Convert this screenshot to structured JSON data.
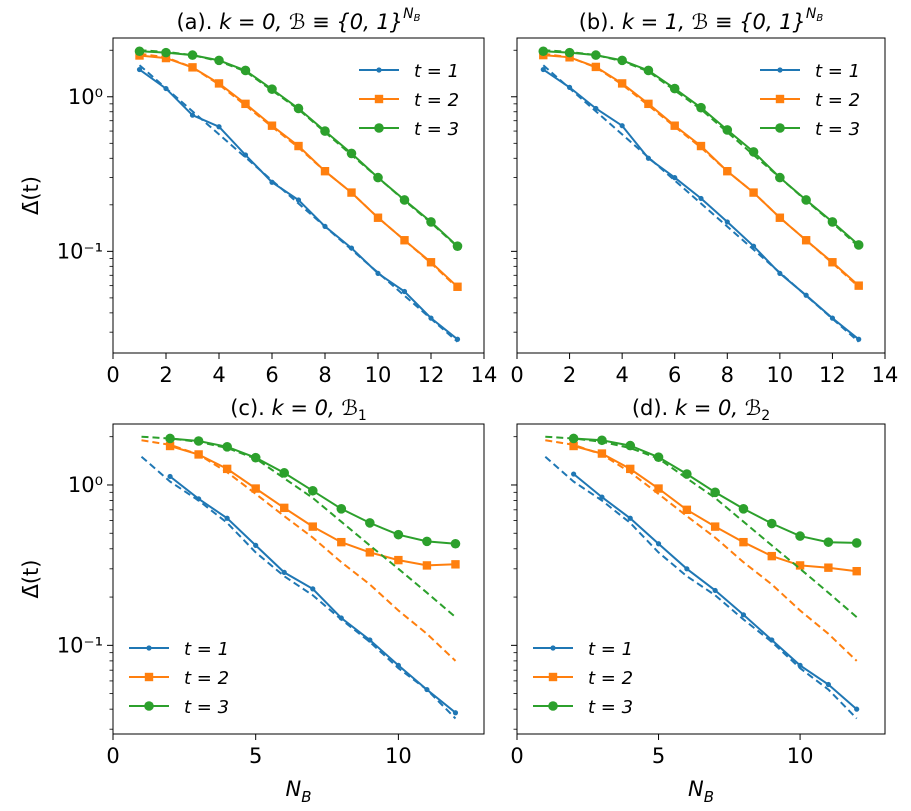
{
  "figure": {
    "series_colors": {
      "t1": "#1f77b4",
      "t2": "#ff7f0e",
      "t3": "#2ca02c"
    },
    "x_axis_label": "N_B",
    "y_axis_label": "Δ̄(t)",
    "y_tick_labels": [
      "10⁰",
      "10⁻¹"
    ]
  },
  "chart_data": [
    {
      "id": "a",
      "type": "line",
      "title_prefix": "(a). ",
      "title_k": "k = 0, ",
      "title_set": "ℬ ≡ {0, 1}",
      "title_sup": "N",
      "title_sub": "B",
      "xlabel": "",
      "ylabel": "Δ̄(t)",
      "yscale": "log",
      "xlim": [
        0,
        14
      ],
      "ylim": [
        0.022,
        2.4
      ],
      "x_ticks": [
        0,
        2,
        4,
        6,
        8,
        10,
        12,
        14
      ],
      "legend_position": "top-right",
      "series": [
        {
          "name": "t = 1",
          "x": [
            1,
            2,
            3,
            4,
            5,
            6,
            7,
            8,
            9,
            10,
            11,
            12,
            13
          ],
          "values": [
            1.5,
            1.13,
            0.76,
            0.64,
            0.42,
            0.28,
            0.215,
            0.145,
            0.105,
            0.072,
            0.055,
            0.037,
            0.027
          ],
          "fit_x": [
            1,
            13
          ],
          "fit_values": [
            1.6,
            0.026
          ]
        },
        {
          "name": "t = 2",
          "x": [
            1,
            2,
            3,
            4,
            5,
            6,
            7,
            8,
            9,
            10,
            11,
            12,
            13
          ],
          "values": [
            1.85,
            1.78,
            1.55,
            1.22,
            0.9,
            0.65,
            0.48,
            0.33,
            0.24,
            0.165,
            0.118,
            0.085,
            0.059
          ],
          "fit_x": [
            1,
            2,
            3,
            4,
            5,
            6,
            7,
            8,
            9,
            10,
            11,
            12,
            13
          ],
          "fit_values": [
            1.9,
            1.8,
            1.55,
            1.2,
            0.88,
            0.64,
            0.47,
            0.33,
            0.24,
            0.165,
            0.118,
            0.084,
            0.058
          ]
        },
        {
          "name": "t = 3",
          "x": [
            1,
            2,
            3,
            4,
            5,
            6,
            7,
            8,
            9,
            10,
            11,
            12,
            13
          ],
          "values": [
            1.97,
            1.93,
            1.86,
            1.72,
            1.48,
            1.12,
            0.84,
            0.6,
            0.43,
            0.3,
            0.215,
            0.155,
            0.108
          ],
          "fit_x": [
            1,
            2,
            3,
            4,
            5,
            6,
            7,
            8,
            9,
            10,
            11,
            12,
            13
          ],
          "fit_values": [
            2.0,
            1.95,
            1.86,
            1.7,
            1.46,
            1.1,
            0.83,
            0.59,
            0.42,
            0.3,
            0.213,
            0.153,
            0.107
          ]
        }
      ]
    },
    {
      "id": "b",
      "type": "line",
      "title_prefix": "(b). ",
      "title_k": "k = 1, ",
      "title_set": "ℬ ≡ {0, 1}",
      "title_sup": "N",
      "title_sub": "B",
      "xlabel": "",
      "ylabel": "",
      "yscale": "log",
      "xlim": [
        0,
        14
      ],
      "ylim": [
        0.022,
        2.4
      ],
      "x_ticks": [
        0,
        2,
        4,
        6,
        8,
        10,
        12,
        14
      ],
      "legend_position": "top-right",
      "series": [
        {
          "name": "t = 1",
          "x": [
            1,
            2,
            3,
            4,
            5,
            6,
            7,
            8,
            9,
            10,
            11,
            12,
            13
          ],
          "values": [
            1.5,
            1.15,
            0.84,
            0.65,
            0.4,
            0.3,
            0.22,
            0.155,
            0.108,
            0.072,
            0.052,
            0.037,
            0.027
          ],
          "fit_x": [
            1,
            13
          ],
          "fit_values": [
            1.6,
            0.026
          ]
        },
        {
          "name": "t = 2",
          "x": [
            1,
            2,
            3,
            4,
            5,
            6,
            7,
            8,
            9,
            10,
            11,
            12,
            13
          ],
          "values": [
            1.86,
            1.8,
            1.56,
            1.22,
            0.9,
            0.65,
            0.48,
            0.33,
            0.24,
            0.165,
            0.118,
            0.085,
            0.06
          ],
          "fit_x": [
            1,
            2,
            3,
            4,
            5,
            6,
            7,
            8,
            9,
            10,
            11,
            12,
            13
          ],
          "fit_values": [
            1.9,
            1.8,
            1.55,
            1.2,
            0.88,
            0.64,
            0.47,
            0.33,
            0.24,
            0.165,
            0.118,
            0.084,
            0.059
          ]
        },
        {
          "name": "t = 3",
          "x": [
            1,
            2,
            3,
            4,
            5,
            6,
            7,
            8,
            9,
            10,
            11,
            12,
            13
          ],
          "values": [
            1.97,
            1.93,
            1.86,
            1.72,
            1.48,
            1.13,
            0.85,
            0.61,
            0.44,
            0.3,
            0.215,
            0.155,
            0.11
          ],
          "fit_x": [
            1,
            2,
            3,
            4,
            5,
            6,
            7,
            8,
            9,
            10,
            11,
            12,
            13
          ],
          "fit_values": [
            2.0,
            1.95,
            1.86,
            1.7,
            1.46,
            1.1,
            0.83,
            0.59,
            0.42,
            0.3,
            0.213,
            0.153,
            0.107
          ]
        }
      ]
    },
    {
      "id": "c",
      "type": "line",
      "title_prefix": "(c). ",
      "title_k": "k = 0, ",
      "title_set": "ℬ",
      "title_sup": "",
      "title_sub": "1",
      "xlabel": "N_B",
      "ylabel": "Δ̄(t)",
      "yscale": "log",
      "xlim": [
        0,
        13
      ],
      "ylim": [
        0.028,
        2.4
      ],
      "x_ticks": [
        0,
        5,
        10
      ],
      "legend_position": "bottom-left",
      "series": [
        {
          "name": "t = 1",
          "x": [
            2,
            3,
            4,
            5,
            6,
            7,
            8,
            9,
            10,
            11,
            12
          ],
          "values": [
            1.13,
            0.82,
            0.62,
            0.42,
            0.285,
            0.225,
            0.148,
            0.108,
            0.075,
            0.053,
            0.038
          ],
          "fit_x": [
            1,
            2,
            3,
            4,
            5,
            6,
            7,
            8,
            9,
            10,
            11,
            12
          ],
          "fit_values": [
            1.5,
            1.05,
            0.8,
            0.58,
            0.38,
            0.27,
            0.205,
            0.145,
            0.105,
            0.072,
            0.053,
            0.035
          ]
        },
        {
          "name": "t = 2",
          "x": [
            2,
            3,
            4,
            5,
            6,
            7,
            8,
            9,
            10,
            11,
            12
          ],
          "values": [
            1.75,
            1.55,
            1.26,
            0.95,
            0.72,
            0.55,
            0.44,
            0.38,
            0.34,
            0.315,
            0.32
          ],
          "fit_x": [
            1,
            2,
            3,
            4,
            5,
            6,
            7,
            8,
            9,
            10,
            11,
            12
          ],
          "fit_values": [
            1.9,
            1.78,
            1.55,
            1.2,
            0.88,
            0.64,
            0.47,
            0.33,
            0.24,
            0.165,
            0.118,
            0.08
          ]
        },
        {
          "name": "t = 3",
          "x": [
            2,
            3,
            4,
            5,
            6,
            7,
            8,
            9,
            10,
            11,
            12
          ],
          "values": [
            1.95,
            1.88,
            1.73,
            1.48,
            1.19,
            0.92,
            0.71,
            0.58,
            0.49,
            0.445,
            0.43
          ],
          "fit_x": [
            1,
            2,
            3,
            4,
            5,
            6,
            7,
            8,
            9,
            10,
            11,
            12
          ],
          "fit_values": [
            2.0,
            1.95,
            1.86,
            1.7,
            1.46,
            1.1,
            0.83,
            0.59,
            0.42,
            0.3,
            0.213,
            0.15
          ]
        }
      ]
    },
    {
      "id": "d",
      "type": "line",
      "title_prefix": "(d). ",
      "title_k": "k = 0, ",
      "title_set": "ℬ",
      "title_sup": "",
      "title_sub": "2",
      "xlabel": "N_B",
      "ylabel": "",
      "yscale": "log",
      "xlim": [
        0,
        13
      ],
      "ylim": [
        0.028,
        2.4
      ],
      "x_ticks": [
        0,
        5,
        10
      ],
      "legend_position": "bottom-left",
      "series": [
        {
          "name": "t = 1",
          "x": [
            2,
            3,
            4,
            5,
            6,
            7,
            8,
            9,
            10,
            11,
            12
          ],
          "values": [
            1.17,
            0.84,
            0.62,
            0.43,
            0.3,
            0.22,
            0.155,
            0.108,
            0.075,
            0.057,
            0.04
          ],
          "fit_x": [
            1,
            2,
            3,
            4,
            5,
            6,
            7,
            8,
            9,
            10,
            11,
            12
          ],
          "fit_values": [
            1.5,
            1.05,
            0.8,
            0.58,
            0.38,
            0.27,
            0.205,
            0.145,
            0.105,
            0.072,
            0.053,
            0.035
          ]
        },
        {
          "name": "t = 2",
          "x": [
            2,
            3,
            4,
            5,
            6,
            7,
            8,
            9,
            10,
            11,
            12
          ],
          "values": [
            1.75,
            1.57,
            1.26,
            0.95,
            0.7,
            0.55,
            0.44,
            0.36,
            0.315,
            0.305,
            0.29
          ],
          "fit_x": [
            1,
            2,
            3,
            4,
            5,
            6,
            7,
            8,
            9,
            10,
            11,
            12
          ],
          "fit_values": [
            1.9,
            1.78,
            1.55,
            1.2,
            0.88,
            0.64,
            0.47,
            0.33,
            0.24,
            0.165,
            0.118,
            0.08
          ]
        },
        {
          "name": "t = 3",
          "x": [
            2,
            3,
            4,
            5,
            6,
            7,
            8,
            9,
            10,
            11,
            12
          ],
          "values": [
            1.95,
            1.9,
            1.76,
            1.49,
            1.17,
            0.9,
            0.71,
            0.575,
            0.48,
            0.44,
            0.435
          ],
          "fit_x": [
            1,
            2,
            3,
            4,
            5,
            6,
            7,
            8,
            9,
            10,
            11,
            12
          ],
          "fit_values": [
            2.0,
            1.95,
            1.86,
            1.7,
            1.46,
            1.1,
            0.83,
            0.59,
            0.42,
            0.3,
            0.213,
            0.15
          ]
        }
      ]
    }
  ]
}
